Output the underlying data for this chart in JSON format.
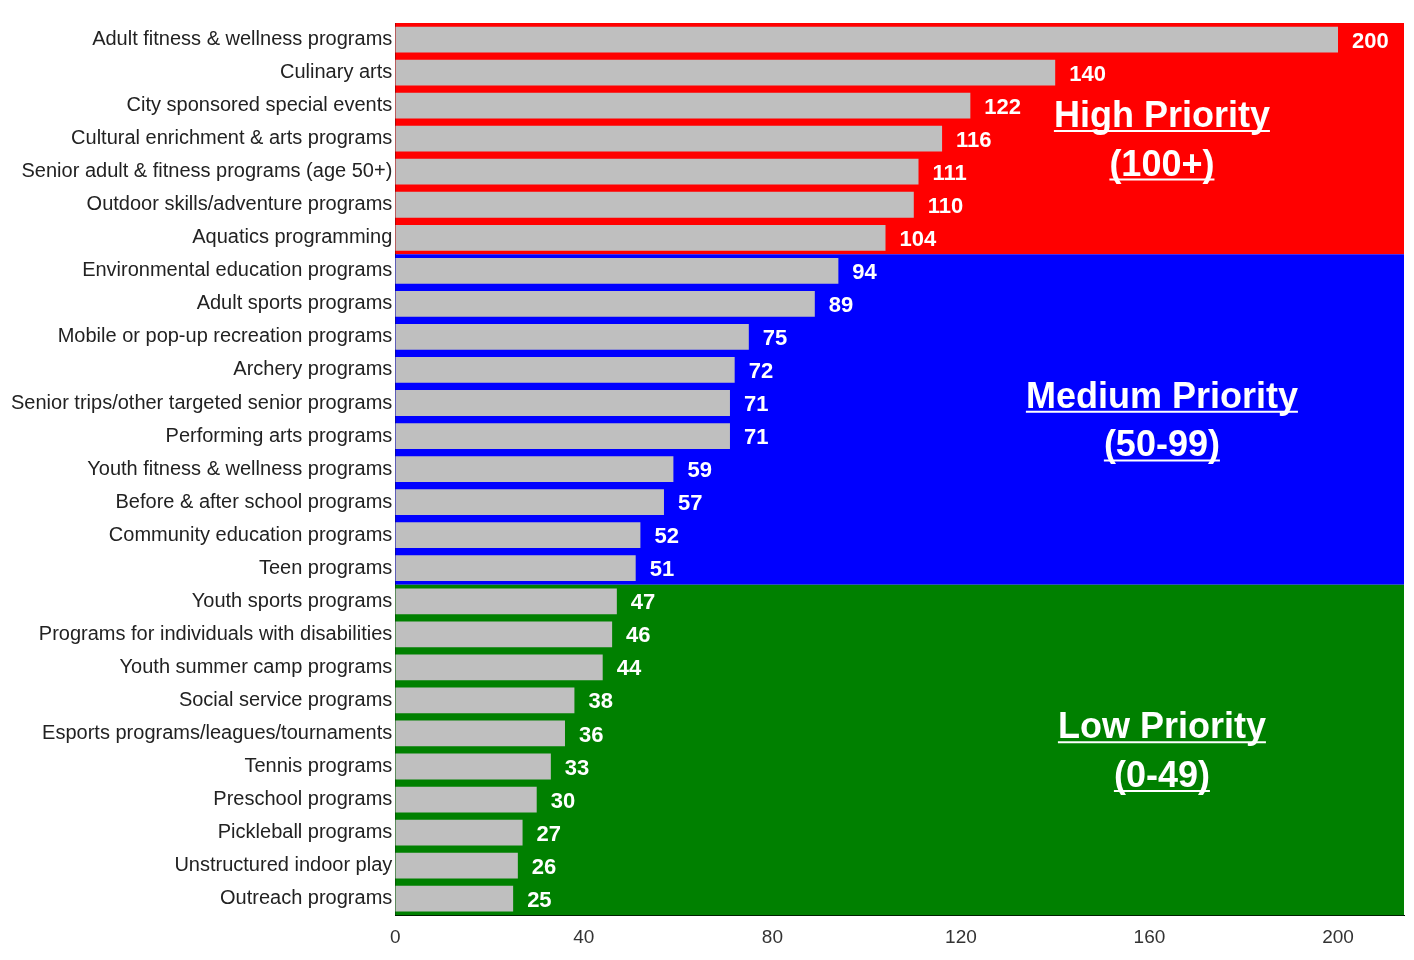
{
  "chart_data": {
    "type": "bar",
    "orientation": "horizontal",
    "categories": [
      "Adult fitness & wellness programs",
      "Culinary arts",
      "City sponsored special events",
      "Cultural enrichment & arts programs",
      "Senior adult & fitness programs (age 50+)",
      "Outdoor skills/adventure programs",
      "Aquatics programming",
      "Environmental education programs",
      "Adult sports programs",
      "Mobile or pop-up recreation programs",
      "Archery programs",
      "Senior trips/other targeted senior programs",
      "Performing arts programs",
      "Youth fitness & wellness programs",
      "Before & after school programs",
      "Community education programs",
      "Teen programs",
      "Youth sports programs",
      "Programs for individuals with disabilities",
      "Youth summer camp programs",
      "Social service programs",
      "Esports programs/leagues/tournaments",
      "Tennis programs",
      "Preschool programs",
      "Pickleball programs",
      "Unstructured indoor play",
      "Outreach programs"
    ],
    "values": [
      200,
      140,
      122,
      116,
      111,
      110,
      104,
      94,
      89,
      75,
      72,
      71,
      71,
      59,
      57,
      52,
      51,
      47,
      46,
      44,
      38,
      36,
      33,
      30,
      27,
      26,
      25
    ],
    "color": "#bfbfbf",
    "data_labels": true,
    "xlim": [
      0,
      214
    ],
    "xticks": [
      0,
      40,
      80,
      120,
      160,
      200
    ],
    "grid": false,
    "legend": false,
    "bands": [
      {
        "axis": "y",
        "from": "Adult fitness & wellness programs",
        "to": "Aquatics programming",
        "label": "High Priority (100+)",
        "color": "#ff0000"
      },
      {
        "axis": "y",
        "from": "Environmental education programs",
        "to": "Teen programs",
        "label": "Medium Priority (50-99)",
        "color": "#0000ff"
      },
      {
        "axis": "y",
        "from": "Youth sports programs",
        "to": "Outreach programs",
        "label": "Low Priority (0-49)",
        "color": "#008000"
      }
    ]
  }
}
